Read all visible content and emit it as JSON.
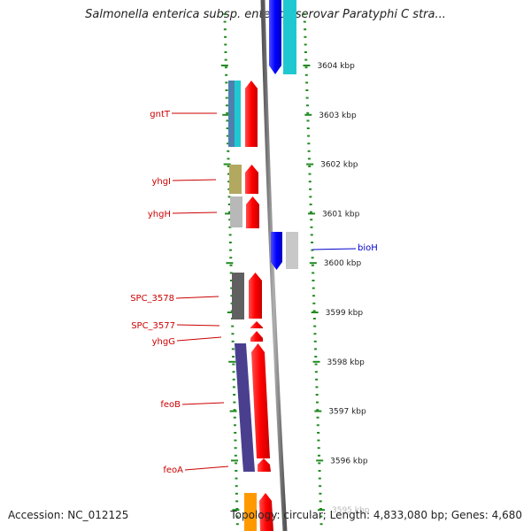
{
  "title": "Salmonella enterica subsp. enterica serovar Paratyphi C stra...",
  "footer": {
    "accession": "Accession: NC_012125",
    "summary": "Topology: circular; Length: 4,833,080 bp; Genes: 4,680"
  },
  "ruler": {
    "unit": "kbp",
    "ticks": [
      {
        "label": "3604 kbp",
        "pos": 3604
      },
      {
        "label": "3603 kbp",
        "pos": 3603
      },
      {
        "label": "3602 kbp",
        "pos": 3602
      },
      {
        "label": "3601 kbp",
        "pos": 3601
      },
      {
        "label": "3600 kbp",
        "pos": 3600
      },
      {
        "label": "3599 kbp",
        "pos": 3599
      },
      {
        "label": "3598 kbp",
        "pos": 3598
      },
      {
        "label": "3597 kbp",
        "pos": 3597
      },
      {
        "label": "3596 kbp",
        "pos": 3596
      },
      {
        "label": "3595 kbp",
        "pos": 3595
      }
    ]
  },
  "gene_labels": {
    "reverse": [
      {
        "name": "gntT",
        "color": "#cc0000"
      },
      {
        "name": "yhgI",
        "color": "#cc0000"
      },
      {
        "name": "yhgH",
        "color": "#cc0000"
      },
      {
        "name": "SPC_3578",
        "color": "#cc0000"
      },
      {
        "name": "SPC_3577",
        "color": "#cc0000"
      },
      {
        "name": "yhgG",
        "color": "#cc0000"
      },
      {
        "name": "feoB",
        "color": "#cc0000"
      },
      {
        "name": "feoA",
        "color": "#cc0000"
      }
    ],
    "forward": [
      {
        "name": "bioH",
        "color": "#0000cc"
      }
    ]
  },
  "colors": {
    "cds_reverse": "#ff0000",
    "cds_forward": "#0000ff",
    "backbone": "#888888",
    "tick": "#228b22",
    "cog_cyan": "#1fc8d0",
    "cog_steel": "#4f7fae",
    "cog_olive": "#b2a860",
    "cog_lightgray": "#b8b8b8",
    "cog_darkgray": "#606060",
    "cog_navy": "#4a3f8f",
    "cog_orange": "#ff9900"
  }
}
